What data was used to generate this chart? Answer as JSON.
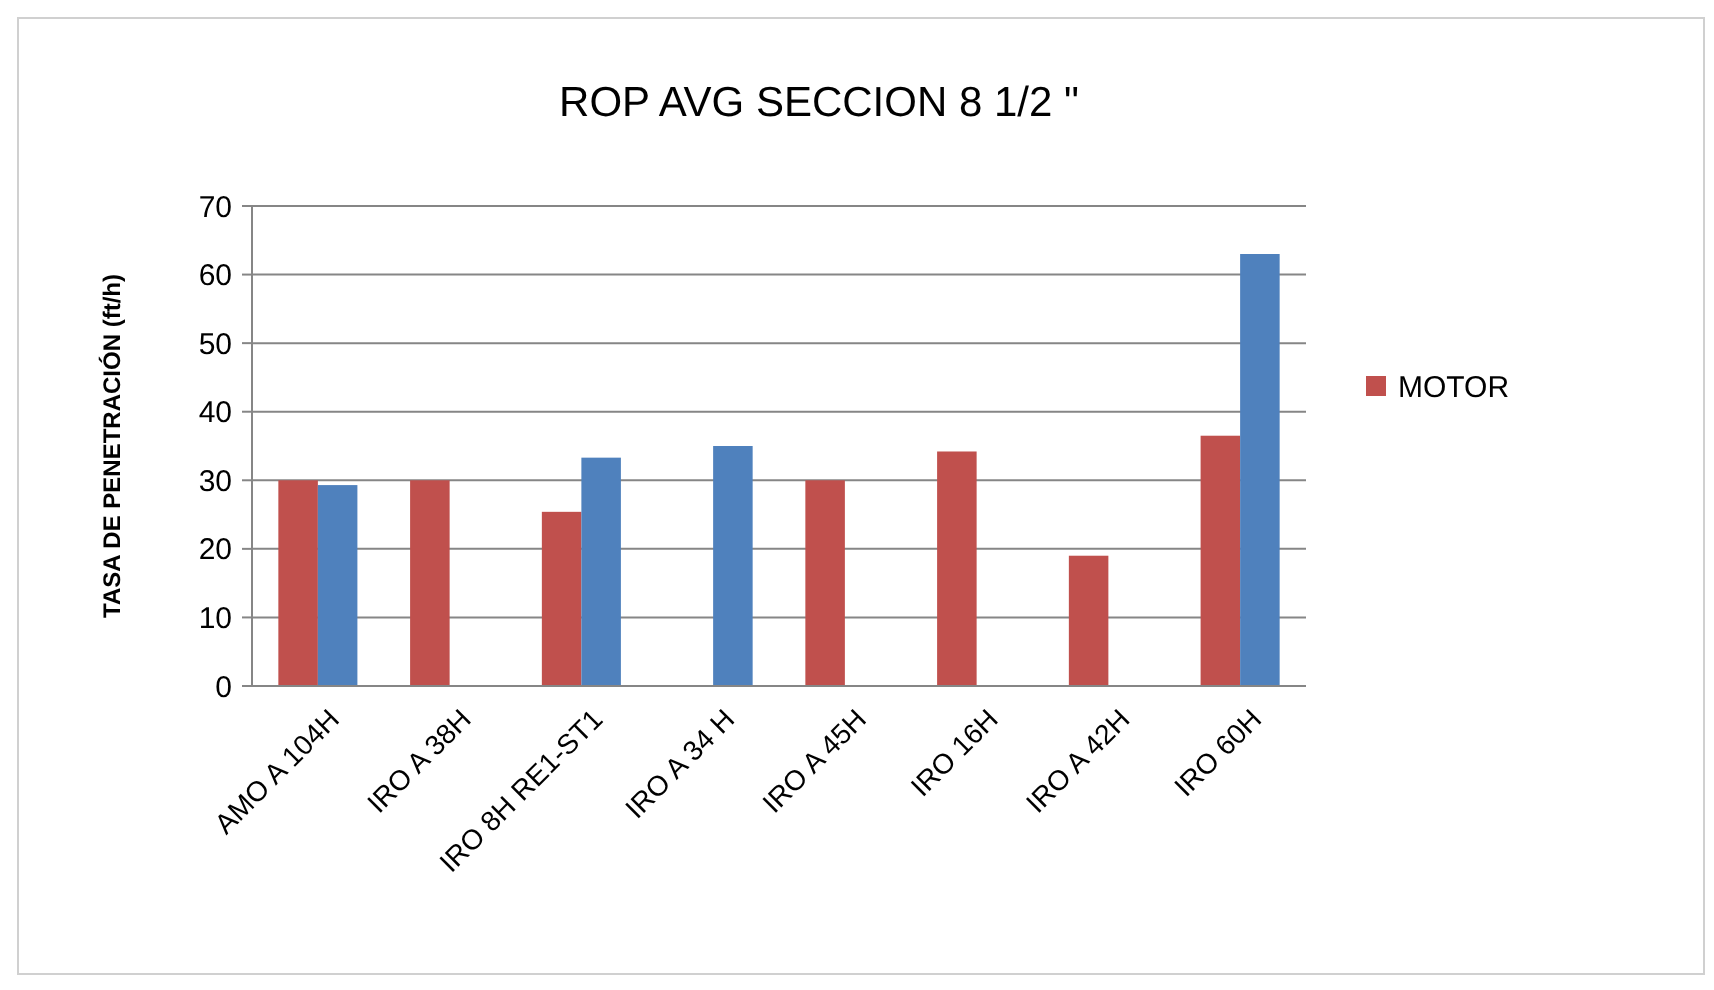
{
  "chart_data": {
    "type": "bar",
    "title": "ROP AVG SECCION 8 1/2 \"",
    "ylabel": "TASA DE PENETRACIÓN  (ft/h)",
    "categories": [
      "AMO A 104H",
      "IRO A 38H",
      "IRO 8H RE1-ST1",
      "IRO A 34 H",
      "IRO A 45H",
      "IRO 16H",
      "IRO A 42H",
      "IRO 60H"
    ],
    "series": [
      {
        "name": "MOTOR",
        "color": "#c0504d",
        "values": [
          30,
          30,
          25.4,
          null,
          30,
          34.2,
          19,
          36.5
        ]
      },
      {
        "color": "#4f81bd",
        "values": [
          29.3,
          null,
          33.3,
          35,
          null,
          null,
          null,
          63
        ]
      }
    ],
    "ylim": [
      0,
      70
    ],
    "yticks": [
      0,
      10,
      20,
      30,
      40,
      50,
      60,
      70
    ],
    "grid": "y",
    "legend": "right"
  }
}
